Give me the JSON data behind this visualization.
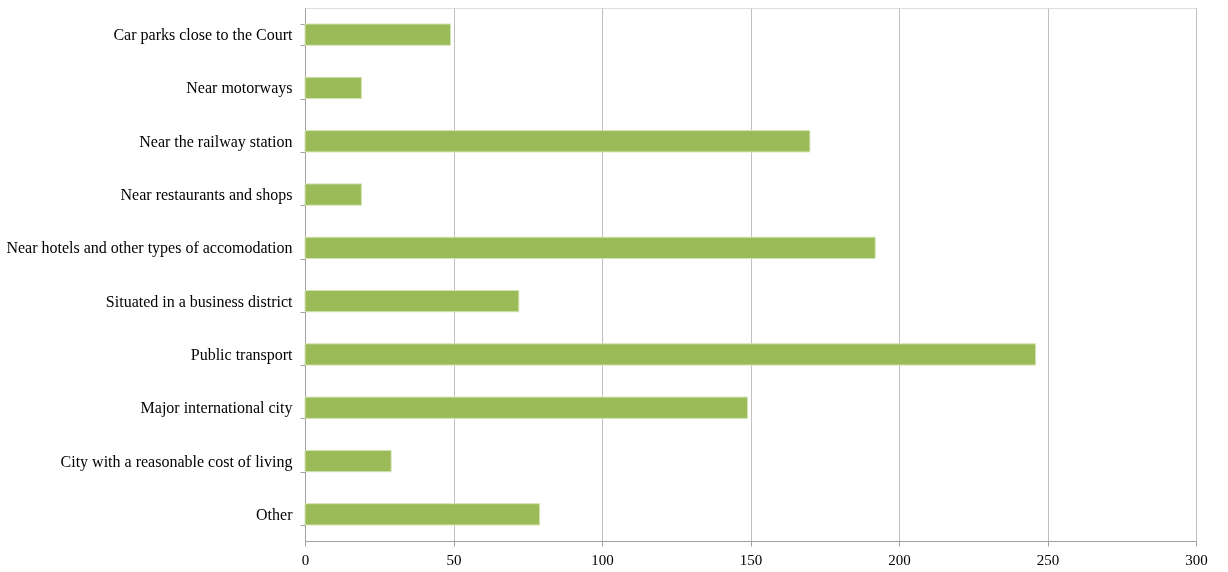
{
  "chart_data": {
    "type": "bar",
    "orientation": "horizontal",
    "categories": [
      "Car parks close to the Court",
      "Near motorways",
      "Near the railway station",
      "Near restaurants and shops",
      "Near hotels and other types of accomodation",
      "Situated in a business district",
      "Public transport",
      "Major international city",
      "City with a reasonable cost of living",
      "Other"
    ],
    "values": [
      49,
      19,
      170,
      19,
      192,
      72,
      246,
      149,
      29,
      79
    ],
    "color": "#9bbb59",
    "xlim": [
      0,
      300
    ],
    "xticks": [
      0,
      50,
      100,
      150,
      200,
      250,
      300
    ],
    "grid": "x"
  }
}
